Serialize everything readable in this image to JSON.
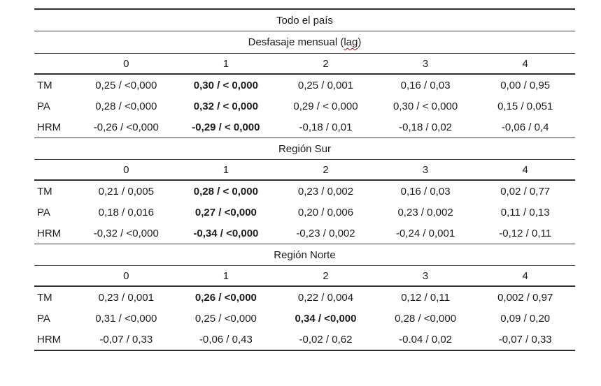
{
  "table": {
    "subtitle": {
      "prefix": "Desfasaje mensual (",
      "word": "lag",
      "suffix": ")"
    },
    "lag_headers": [
      "0",
      "1",
      "2",
      "3",
      "4"
    ],
    "sections": [
      {
        "title": "Todo el país",
        "rows": [
          {
            "label": "TM",
            "cells": [
              {
                "t": "0,25 / <0,000"
              },
              {
                "t": "0,30 / < 0,000",
                "b": true
              },
              {
                "t": "0,25 / 0,001"
              },
              {
                "t": "0,16 / 0,03"
              },
              {
                "t": "0,00 / 0,95"
              }
            ]
          },
          {
            "label": "PA",
            "cells": [
              {
                "t": "0,28 / <0,000"
              },
              {
                "t": "0,32 / < 0,000",
                "b": true
              },
              {
                "t": "0,29 / < 0,000"
              },
              {
                "t": "0,30 / < 0,000"
              },
              {
                "t": "0,15 / 0,051"
              }
            ]
          },
          {
            "label": "HRM",
            "cells": [
              {
                "t": "-0,26 / <0,000"
              },
              {
                "t": "-0,29 / < 0,000",
                "b": true
              },
              {
                "t": "-0,18 / 0,01"
              },
              {
                "t": "-0,18 / 0,02"
              },
              {
                "t": "-0,06 / 0,4"
              }
            ]
          }
        ]
      },
      {
        "title": "Región Sur",
        "rows": [
          {
            "label": "TM",
            "cells": [
              {
                "t": "0,21 / 0,005"
              },
              {
                "t": "0,28 / < 0,000",
                "b": true
              },
              {
                "t": "0,23 / 0,002"
              },
              {
                "t": "0,16 / 0,03"
              },
              {
                "t": "0,02 / 0,77"
              }
            ]
          },
          {
            "label": "PA",
            "cells": [
              {
                "t": "0,18 / 0,016"
              },
              {
                "t": "0,27 / <0,000",
                "b": true
              },
              {
                "t": "0,20 / 0,006"
              },
              {
                "t": "0,23 / 0,002"
              },
              {
                "t": "0,11 / 0,13"
              }
            ]
          },
          {
            "label": "HRM",
            "cells": [
              {
                "t": "-0,32 / <0,000"
              },
              {
                "t": "-0,34 / <0,000",
                "b": true
              },
              {
                "t": "-0,23 / 0,002"
              },
              {
                "t": "-0,24 / 0,001"
              },
              {
                "t": "-0,12 / 0,11"
              }
            ]
          }
        ]
      },
      {
        "title": "Región Norte",
        "rows": [
          {
            "label": "TM",
            "cells": [
              {
                "t": "0,23 / 0,001"
              },
              {
                "t": "0,26 / <0,000",
                "b": true
              },
              {
                "t": "0,22 / 0,004"
              },
              {
                "t": "0,12 / 0,11"
              },
              {
                "t": "0,002 / 0,97"
              }
            ]
          },
          {
            "label": "PA",
            "cells": [
              {
                "t": "0,31 / <0,000"
              },
              {
                "t": "0,25 / <0,000"
              },
              {
                "t": "0,34 / <0,000",
                "b": true
              },
              {
                "t": "0,28 / <0,000"
              },
              {
                "t": "0,09 / 0,20"
              }
            ]
          },
          {
            "label": "HRM",
            "cells": [
              {
                "t": "-0,07 / 0,33"
              },
              {
                "t": "-0,06 / 0,43"
              },
              {
                "t": "-0,02 / 0,62"
              },
              {
                "t": "-0.04 / 0,02"
              },
              {
                "t": "-0,07 / 0,33"
              }
            ]
          }
        ]
      }
    ],
    "colors": {
      "line_thin": "#3d3d3d",
      "line_thick": "#2e2e2e",
      "text": "#1c1c1c",
      "squiggle_red": "#c00000",
      "background": "#ffffff"
    }
  }
}
